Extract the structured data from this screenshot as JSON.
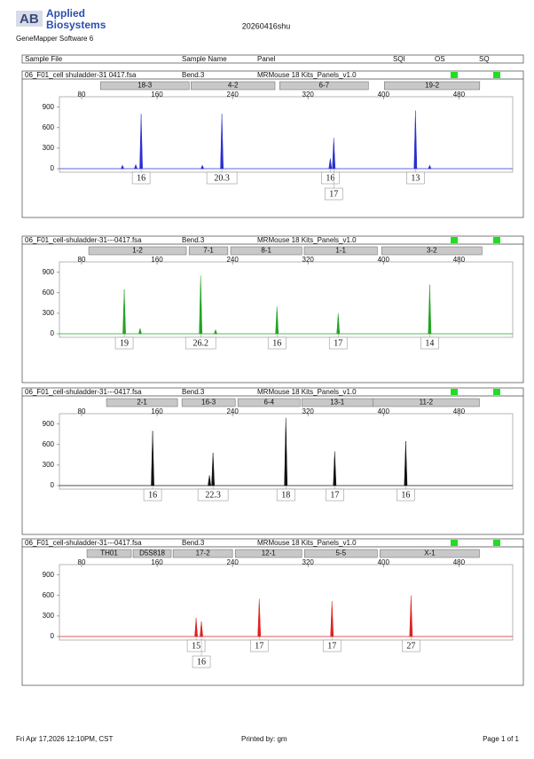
{
  "header": {
    "logo": "AB",
    "brand_top": "Applied",
    "brand_bottom": "Biosystems",
    "software": "GeneMapper Software 6",
    "title": "20260416shu"
  },
  "columns": [
    "Sample File",
    "Sample Name",
    "Panel",
    "SQI",
    "OS",
    "SQ"
  ],
  "panels": [
    {
      "sample_file": "06_F01_cell shuladder-31 0417.fsa",
      "sample_name": "Bend.3",
      "panel": "MRMouse 18 Kits_Panels_v1.0",
      "color": "#2a2fd0",
      "markers": [
        {
          "name": "18-3",
          "start": 100,
          "end": 194
        },
        {
          "name": "4-2",
          "start": 196,
          "end": 285
        },
        {
          "name": "6-7",
          "start": 290,
          "end": 384
        },
        {
          "name": "19-2",
          "start": 401,
          "end": 502
        }
      ],
      "xlim": [
        56.5,
        537
      ],
      "xticks": [
        80,
        160,
        240,
        320,
        400,
        480
      ],
      "ylim": [
        0,
        1000
      ],
      "yticks": [
        0,
        300,
        600,
        900
      ],
      "peaks": [
        {
          "x": 123.3,
          "h": 50
        },
        {
          "x": 137.4,
          "h": 60
        },
        {
          "x": 143.1,
          "h": 800
        },
        {
          "x": 208,
          "h": 50
        },
        {
          "x": 228.7,
          "h": 800
        },
        {
          "x": 343.6,
          "h": 150
        },
        {
          "x": 347.3,
          "h": 450
        },
        {
          "x": 433.9,
          "h": 850
        },
        {
          "x": 449,
          "h": 50
        }
      ],
      "alleles": [
        {
          "label": "16",
          "x": 143.1,
          "row": 1
        },
        {
          "label": "20.3",
          "x": 228.7,
          "row": 1
        },
        {
          "label": "16",
          "x": 343.6,
          "row": 1
        },
        {
          "label": "17",
          "x": 347.3,
          "row": 2
        },
        {
          "label": "13",
          "x": 433.9,
          "row": 1
        }
      ]
    },
    {
      "sample_file": "06_F01_cell-shuladder-31---0417.fsa",
      "sample_name": "Bend.3",
      "panel": "MRMouse 18 Kits_Panels_v1.0",
      "color": "#22a322",
      "markers": [
        {
          "name": "1-2",
          "start": 87.6,
          "end": 191
        },
        {
          "name": "7-1",
          "start": 194,
          "end": 235
        },
        {
          "name": "8-1",
          "start": 238,
          "end": 313.5
        },
        {
          "name": "1-1",
          "start": 316,
          "end": 393.5
        },
        {
          "name": "3-2",
          "start": 398,
          "end": 504.5
        }
      ],
      "xlim": [
        56.5,
        537
      ],
      "xticks": [
        80,
        160,
        240,
        320,
        400,
        480
      ],
      "ylim": [
        0,
        1000
      ],
      "yticks": [
        0,
        300,
        600,
        900
      ],
      "peaks": [
        {
          "x": 125.2,
          "h": 650
        },
        {
          "x": 142,
          "h": 80
        },
        {
          "x": 206.2,
          "h": 850
        },
        {
          "x": 222,
          "h": 60
        },
        {
          "x": 287.1,
          "h": 400
        },
        {
          "x": 352,
          "h": 300
        },
        {
          "x": 449,
          "h": 720
        }
      ],
      "alleles": [
        {
          "label": "19",
          "x": 125.2,
          "row": 1
        },
        {
          "label": "26.2",
          "x": 206.2,
          "row": 1
        },
        {
          "label": "16",
          "x": 287.1,
          "row": 1
        },
        {
          "label": "17",
          "x": 352,
          "row": 1
        },
        {
          "label": "14",
          "x": 449,
          "row": 1
        }
      ]
    },
    {
      "sample_file": "06_F01_cell-shuladder-31---0417.fsa",
      "sample_name": "Bend.3",
      "panel": "MRMouse 18 Kits_Panels_v1.0",
      "color": "#111111",
      "markers": [
        {
          "name": "2-1",
          "start": 106.4,
          "end": 181.7
        },
        {
          "name": "16-3",
          "start": 186.4,
          "end": 242.9
        },
        {
          "name": "6-4",
          "start": 245.7,
          "end": 311.6
        },
        {
          "name": "13-1",
          "start": 313.4,
          "end": 388.7
        },
        {
          "name": "11-2",
          "start": 388.7,
          "end": 501.7
        }
      ],
      "xlim": [
        56.5,
        537
      ],
      "xticks": [
        80,
        160,
        240,
        320,
        400,
        480
      ],
      "ylim": [
        0,
        1000
      ],
      "yticks": [
        0,
        300,
        600,
        900
      ],
      "peaks": [
        {
          "x": 155.3,
          "h": 800
        },
        {
          "x": 215.5,
          "h": 150
        },
        {
          "x": 219.3,
          "h": 480
        },
        {
          "x": 296.5,
          "h": 990
        },
        {
          "x": 348.3,
          "h": 500
        },
        {
          "x": 423.6,
          "h": 650
        }
      ],
      "alleles": [
        {
          "label": "16",
          "x": 155.3,
          "row": 1
        },
        {
          "label": "22.3",
          "x": 219.3,
          "row": 1
        },
        {
          "label": "18",
          "x": 296.5,
          "row": 1
        },
        {
          "label": "17",
          "x": 348.3,
          "row": 1
        },
        {
          "label": "16",
          "x": 423.6,
          "row": 1
        }
      ]
    },
    {
      "sample_file": "06_F01_cell-shuladder-31---0417.fsa",
      "sample_name": "Bend.3",
      "panel": "MRMouse 18 Kits_Panels_v1.0",
      "color": "#dd2222",
      "markers": [
        {
          "name": "TH01",
          "start": 85.7,
          "end": 132.7
        },
        {
          "name": "D5S818",
          "start": 134.6,
          "end": 175
        },
        {
          "name": "17-2",
          "start": 177,
          "end": 240
        },
        {
          "name": "12-1",
          "start": 242.9,
          "end": 313.4
        },
        {
          "name": "5-5",
          "start": 316.3,
          "end": 393.4
        },
        {
          "name": "X-1",
          "start": 396.3,
          "end": 501.7
        }
      ],
      "xlim": [
        56.5,
        537
      ],
      "xticks": [
        80,
        160,
        240,
        320,
        400,
        480
      ],
      "ylim": [
        0,
        1000
      ],
      "yticks": [
        0,
        300,
        600,
        900
      ],
      "peaks": [
        {
          "x": 201.4,
          "h": 270
        },
        {
          "x": 207,
          "h": 220
        },
        {
          "x": 268.3,
          "h": 550
        },
        {
          "x": 345.4,
          "h": 520
        },
        {
          "x": 429.2,
          "h": 600
        }
      ],
      "alleles": [
        {
          "label": "15",
          "x": 201.4,
          "row": 1
        },
        {
          "label": "16",
          "x": 207,
          "row": 2
        },
        {
          "label": "17",
          "x": 268.3,
          "row": 1
        },
        {
          "label": "17",
          "x": 345.4,
          "row": 1
        },
        {
          "label": "27",
          "x": 429.2,
          "row": 1
        }
      ]
    }
  ],
  "footer": {
    "date": "Fri Apr 17,2026 12:10PM, CST",
    "printed": "Printed by: gm",
    "page": "Page 1 of 1"
  }
}
